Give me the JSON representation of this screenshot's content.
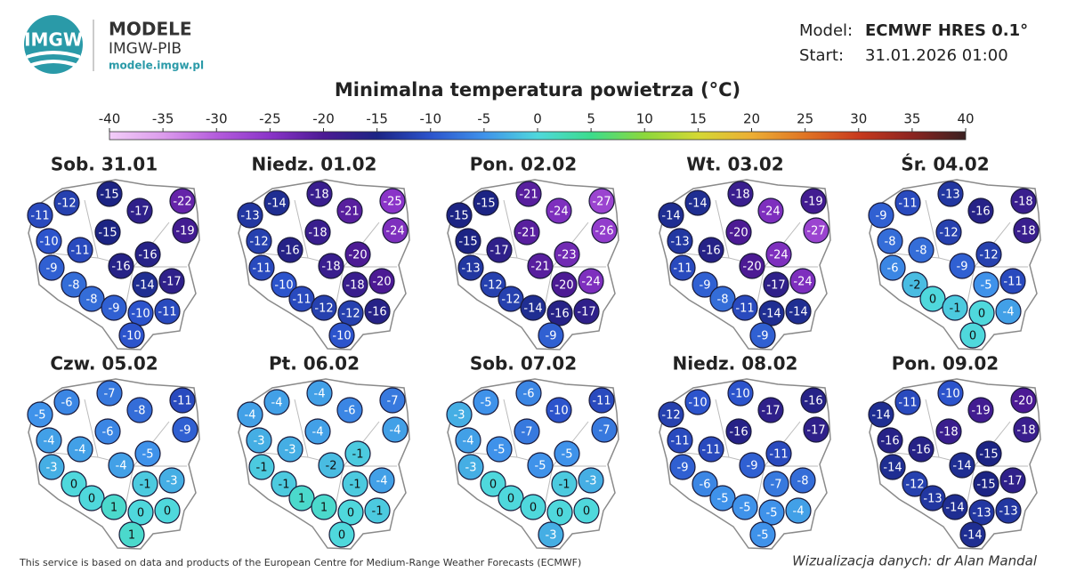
{
  "header": {
    "logo": "IMGW",
    "brand": "MODELE",
    "org": "IMGW-PIB",
    "url": "modele.imgw.pl",
    "model_label": "Model:",
    "model": "ECMWF HRES 0.1°",
    "start_label": "Start:",
    "start": "31.01.2026 01:00"
  },
  "title": "Minimalna temperatura powietrza (°C)",
  "colorbar": {
    "ticks": [
      -40,
      -35,
      -30,
      -25,
      -20,
      -15,
      -10,
      -5,
      0,
      5,
      10,
      15,
      20,
      25,
      30,
      35,
      40
    ],
    "colors": [
      "#f2cdf8",
      "#dc9cec",
      "#b45cdc",
      "#8a34c8",
      "#4c1a94",
      "#1c2484",
      "#2c54cc",
      "#3f92ea",
      "#4fd8dc",
      "#3cdc8c",
      "#8cd83c",
      "#d4d834",
      "#ecae34",
      "#e07424",
      "#c83a1e",
      "#8c2420",
      "#3a2020"
    ]
  },
  "maps": [
    {
      "title": "Sob. 31.01",
      "values": [
        -12,
        -15,
        -22,
        -11,
        -17,
        -19,
        -15,
        -10,
        -11,
        -16,
        -9,
        -16,
        -17,
        -8,
        -14,
        -8,
        -9,
        -10,
        -11,
        -10
      ]
    },
    {
      "title": "Niedz. 01.02",
      "values": [
        -14,
        -18,
        -25,
        -13,
        -21,
        -24,
        -18,
        -12,
        -16,
        -20,
        -11,
        -18,
        -20,
        -10,
        -18,
        -11,
        -12,
        -12,
        -16,
        -10
      ]
    },
    {
      "title": "Pon. 02.02",
      "values": [
        -15,
        -21,
        -27,
        -15,
        -24,
        -26,
        -21,
        -15,
        -17,
        -23,
        -13,
        -21,
        -24,
        -12,
        -20,
        -12,
        -14,
        -16,
        -17,
        -9
      ]
    },
    {
      "title": "Wt. 03.02",
      "values": [
        -14,
        -18,
        -19,
        -14,
        -24,
        -27,
        -20,
        -13,
        -16,
        -24,
        -11,
        -20,
        -24,
        -9,
        -17,
        -8,
        -11,
        -14,
        -14,
        -9
      ]
    },
    {
      "title": "Śr. 04.02",
      "values": [
        -11,
        -13,
        -18,
        -9,
        -16,
        -18,
        -12,
        -8,
        -8,
        -12,
        -6,
        -9,
        -11,
        -2,
        -5,
        0,
        -1,
        0,
        -4,
        0
      ]
    },
    {
      "title": "Czw. 05.02",
      "values": [
        -6,
        -7,
        -11,
        -5,
        -8,
        -9,
        -6,
        -4,
        -4,
        -5,
        -3,
        -4,
        -3,
        0,
        -1,
        0,
        1,
        0,
        0,
        1
      ]
    },
    {
      "title": "Pt. 06.02",
      "values": [
        -4,
        -4,
        -7,
        -4,
        -6,
        -4,
        -4,
        -3,
        -3,
        -1,
        -1,
        -2,
        -4,
        -1,
        -1,
        1,
        1,
        0,
        -1,
        0
      ]
    },
    {
      "title": "Sob. 07.02",
      "values": [
        -5,
        -6,
        -11,
        -3,
        -10,
        -7,
        -7,
        -4,
        -5,
        -5,
        -3,
        -5,
        -3,
        0,
        -1,
        0,
        0,
        0,
        0,
        -3
      ]
    },
    {
      "title": "Niedz. 08.02",
      "values": [
        -10,
        -10,
        -16,
        -12,
        -17,
        -17,
        -16,
        -11,
        -11,
        -11,
        -9,
        -9,
        -8,
        -6,
        -7,
        -5,
        -5,
        -5,
        -4,
        -5
      ]
    },
    {
      "title": "Pon. 09.02",
      "values": [
        -11,
        -10,
        -20,
        -14,
        -19,
        -18,
        -18,
        -16,
        -16,
        -15,
        -14,
        -14,
        -17,
        -12,
        -15,
        -13,
        -14,
        -13,
        -13,
        -14
      ]
    }
  ],
  "footer": {
    "source": "This service is based on data and products of the European Centre for Medium-Range Weather Forecasts (ECMWF)",
    "credit": "Wizualizacja danych: dr Alan Mandal"
  }
}
